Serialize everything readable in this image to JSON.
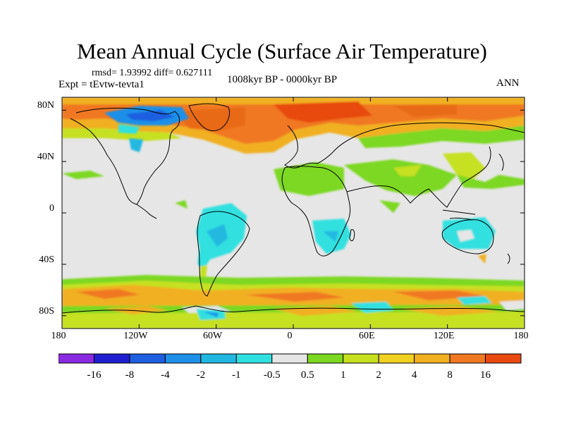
{
  "title": "Mean Annual Cycle (Surface Air Temperature)",
  "stats_text": "rmsd= 1.93992 diff= 0.627111",
  "experiment": "Expt = tEvtw-tevta1",
  "period": "1008kyr BP - 0000kyr BP",
  "season": "ANN",
  "map": {
    "projection": "cylindrical equidistant",
    "lon_range": [
      -180,
      180
    ],
    "lat_range": [
      -90,
      90
    ],
    "lon_ticks": [
      -180,
      -120,
      -60,
      0,
      60,
      120,
      180
    ],
    "lon_tick_labels": [
      "180",
      "120W",
      "60W",
      "0",
      "60E",
      "120E",
      "180"
    ],
    "lat_ticks": [
      80,
      40,
      0,
      -40,
      -80
    ],
    "lat_tick_labels": [
      "80N",
      "40N",
      "0",
      "40S",
      "80S"
    ]
  },
  "colorbar": {
    "colors": [
      "#8A2BE2",
      "#2020D0",
      "#1E5FE0",
      "#1E90E8",
      "#20B8E0",
      "#30E0E0",
      "#E6E6E6",
      "#7CD820",
      "#C6E020",
      "#F0D020",
      "#F0B020",
      "#F07820",
      "#E84A10"
    ],
    "labels": [
      "-16",
      "-8",
      "-4",
      "-2",
      "-1",
      "-0.5",
      "0.5",
      "1",
      "2",
      "4",
      "8",
      "16"
    ]
  },
  "colors": {
    "neutral": "#E6E6E6",
    "land_outline": "#000000"
  }
}
